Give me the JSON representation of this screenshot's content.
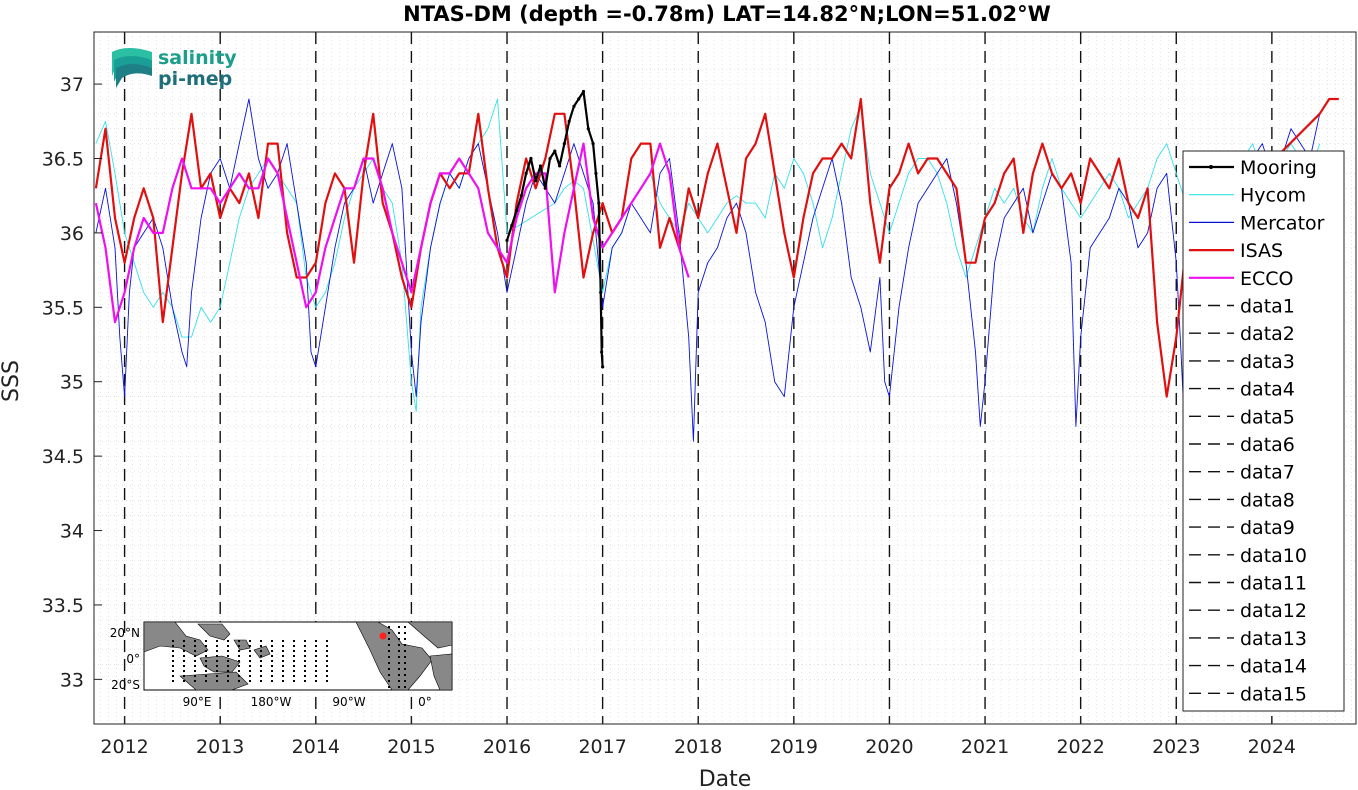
{
  "chart_data": {
    "type": "line",
    "title": "NTAS-DM (depth =-0.78m) LAT=14.82°N;LON=51.02°W",
    "xlabel": "Date",
    "ylabel": "SSS",
    "xlim": [
      2011.68,
      2024.88
    ],
    "ylim": [
      32.7,
      37.35
    ],
    "x_ticks": [
      "2012",
      "2013",
      "2014",
      "2015",
      "2016",
      "2017",
      "2018",
      "2019",
      "2020",
      "2021",
      "2022",
      "2023",
      "2024"
    ],
    "y_ticks": [
      "33",
      "33.5",
      "34",
      "34.5",
      "35",
      "35.5",
      "36",
      "36.5",
      "37"
    ],
    "grid": true,
    "legend_position": "right",
    "vertical_markers": [
      2012.0,
      2013.0,
      2014.0,
      2015.0,
      2016.0,
      2017.0,
      2018.0,
      2019.0,
      2020.0,
      2021.0,
      2022.0,
      2023.0,
      2024.0
    ],
    "series": [
      {
        "name": "Mooring",
        "color": "#000000",
        "style": "solid-dots",
        "x": [
          2016.0,
          2016.05,
          2016.1,
          2016.15,
          2016.2,
          2016.25,
          2016.3,
          2016.35,
          2016.4,
          2016.45,
          2016.5,
          2016.55,
          2016.6,
          2016.65,
          2016.7,
          2016.75,
          2016.8,
          2016.85,
          2016.9,
          2016.93,
          2016.96,
          2016.98,
          2016.99,
          2017.0
        ],
        "values": [
          35.95,
          36.05,
          36.15,
          36.25,
          36.4,
          36.5,
          36.35,
          36.45,
          36.3,
          36.5,
          36.55,
          36.45,
          36.6,
          36.75,
          36.85,
          36.9,
          36.95,
          36.7,
          36.6,
          36.4,
          36.2,
          35.6,
          35.2,
          35.1
        ]
      },
      {
        "name": "Hycom",
        "color": "#33e0e8",
        "style": "thin",
        "x": [
          2011.7,
          2011.8,
          2011.9,
          2012.0,
          2012.1,
          2012.2,
          2012.3,
          2012.4,
          2012.5,
          2012.55,
          2012.6,
          2012.7,
          2012.8,
          2012.9,
          2013.0,
          2013.1,
          2013.2,
          2013.3,
          2013.4,
          2013.5,
          2013.6,
          2013.7,
          2013.8,
          2013.9,
          2014.0,
          2014.1,
          2014.2,
          2014.3,
          2014.4,
          2014.5,
          2014.6,
          2014.7,
          2014.8,
          2014.9,
          2015.0,
          2015.05,
          2015.1,
          2015.2,
          2015.3,
          2015.4,
          2015.5,
          2015.6,
          2015.7,
          2015.8,
          2015.9,
          2016.0,
          2016.5,
          2016.6,
          2016.7,
          2016.8,
          2017.0,
          2017.1,
          2017.2,
          2017.3,
          2017.4,
          2017.5,
          2017.6,
          2017.7,
          2017.8,
          2017.9,
          2018.0,
          2018.1,
          2018.2,
          2018.3,
          2018.4,
          2018.5,
          2018.6,
          2018.7,
          2018.8,
          2018.9,
          2019.0,
          2019.1,
          2019.2,
          2019.3,
          2019.4,
          2019.5,
          2019.6,
          2019.7,
          2019.8,
          2019.9,
          2020.0,
          2020.1,
          2020.2,
          2020.3,
          2020.4,
          2020.5,
          2020.6,
          2020.7,
          2020.8,
          2020.9,
          2021.0,
          2021.1,
          2021.2,
          2021.3,
          2021.4,
          2021.5,
          2021.6,
          2021.7,
          2021.8,
          2021.9,
          2022.0,
          2022.1,
          2022.2,
          2022.3,
          2022.4,
          2022.5,
          2022.6,
          2022.7,
          2022.8,
          2022.9,
          2023.0,
          2023.1,
          2023.2,
          2023.3,
          2023.4,
          2023.5,
          2023.6,
          2023.7,
          2023.8,
          2023.9,
          2024.0,
          2024.1,
          2024.2,
          2024.3,
          2024.4,
          2024.5
        ],
        "values": [
          36.6,
          36.75,
          36.4,
          36.0,
          35.8,
          35.6,
          35.5,
          35.6,
          35.5,
          35.4,
          35.3,
          35.3,
          35.5,
          35.4,
          35.5,
          35.8,
          36.1,
          36.3,
          36.4,
          36.5,
          36.4,
          36.3,
          36.2,
          35.7,
          35.5,
          35.6,
          35.8,
          36.1,
          36.3,
          36.4,
          36.5,
          36.3,
          36.2,
          35.8,
          35.0,
          34.8,
          35.5,
          35.9,
          36.2,
          36.4,
          36.3,
          36.5,
          36.6,
          36.7,
          36.9,
          36.0,
          36.2,
          36.3,
          36.35,
          36.3,
          35.6,
          35.9,
          36.0,
          36.2,
          36.3,
          36.4,
          36.2,
          36.1,
          36.0,
          36.2,
          36.1,
          36.0,
          36.1,
          36.2,
          36.25,
          36.2,
          36.2,
          36.1,
          36.4,
          36.3,
          36.5,
          36.4,
          36.2,
          35.9,
          36.1,
          36.4,
          36.7,
          36.85,
          36.4,
          36.2,
          36.0,
          36.2,
          36.4,
          36.5,
          36.5,
          36.4,
          36.2,
          35.9,
          35.7,
          35.9,
          36.1,
          36.3,
          36.2,
          36.3,
          36.1,
          36.0,
          36.3,
          36.5,
          36.3,
          36.2,
          36.1,
          36.2,
          36.3,
          36.4,
          36.3,
          36.1,
          36.2,
          36.3,
          36.5,
          36.6,
          36.4,
          36.2,
          36.4,
          36.5,
          36.3,
          36.2,
          36.4,
          36.5,
          36.6,
          36.4,
          36.3,
          36.5,
          36.6,
          36.5,
          36.4,
          36.6
        ]
      },
      {
        "name": "Mercator",
        "color": "#0a12d8",
        "style": "thin",
        "x": [
          2011.7,
          2011.8,
          2011.9,
          2011.95,
          2012.0,
          2012.05,
          2012.1,
          2012.2,
          2012.3,
          2012.4,
          2012.5,
          2012.6,
          2012.65,
          2012.7,
          2012.8,
          2012.9,
          2013.0,
          2013.1,
          2013.2,
          2013.3,
          2013.4,
          2013.5,
          2013.6,
          2013.7,
          2013.8,
          2013.9,
          2013.95,
          2014.0,
          2014.1,
          2014.2,
          2014.3,
          2014.4,
          2014.5,
          2014.6,
          2014.7,
          2014.8,
          2014.9,
          2015.0,
          2015.05,
          2015.1,
          2015.2,
          2015.3,
          2015.4,
          2015.5,
          2015.6,
          2015.7,
          2015.8,
          2015.9,
          2016.0,
          2016.1,
          2016.2,
          2016.3,
          2016.4,
          2016.5,
          2016.6,
          2016.7,
          2016.8,
          2016.9,
          2017.0,
          2017.1,
          2017.2,
          2017.3,
          2017.4,
          2017.5,
          2017.6,
          2017.7,
          2017.8,
          2017.9,
          2017.95,
          2018.0,
          2018.1,
          2018.2,
          2018.3,
          2018.4,
          2018.5,
          2018.6,
          2018.7,
          2018.8,
          2018.9,
          2019.0,
          2019.1,
          2019.2,
          2019.3,
          2019.4,
          2019.5,
          2019.6,
          2019.7,
          2019.8,
          2019.9,
          2019.95,
          2020.0,
          2020.1,
          2020.2,
          2020.3,
          2020.4,
          2020.5,
          2020.6,
          2020.7,
          2020.8,
          2020.9,
          2020.95,
          2021.0,
          2021.1,
          2021.2,
          2021.3,
          2021.4,
          2021.5,
          2021.6,
          2021.7,
          2021.8,
          2021.9,
          2021.95,
          2022.0,
          2022.1,
          2022.2,
          2022.3,
          2022.4,
          2022.5,
          2022.6,
          2022.7,
          2022.8,
          2022.9,
          2023.0,
          2023.05,
          2023.1,
          2023.2,
          2023.3,
          2023.4,
          2023.5,
          2023.6,
          2023.7,
          2023.8,
          2023.9,
          2024.0,
          2024.1,
          2024.2,
          2024.3,
          2024.4,
          2024.5
        ],
        "values": [
          36.0,
          36.3,
          35.9,
          35.3,
          34.9,
          35.6,
          35.9,
          36.0,
          36.1,
          35.9,
          35.5,
          35.2,
          35.1,
          35.6,
          36.1,
          36.4,
          36.5,
          36.3,
          36.6,
          36.9,
          36.5,
          36.3,
          36.4,
          36.6,
          36.2,
          35.8,
          35.2,
          35.1,
          35.5,
          35.9,
          36.2,
          36.3,
          36.5,
          36.2,
          36.4,
          36.6,
          36.3,
          35.2,
          34.9,
          35.4,
          35.9,
          36.2,
          36.4,
          36.3,
          36.5,
          36.6,
          36.3,
          36.0,
          35.6,
          35.9,
          36.2,
          36.4,
          36.3,
          36.2,
          36.4,
          36.6,
          36.4,
          36.2,
          35.5,
          35.9,
          36.0,
          36.2,
          36.1,
          36.0,
          36.4,
          36.5,
          36.0,
          35.3,
          34.6,
          35.6,
          35.8,
          35.9,
          36.1,
          36.2,
          36.0,
          35.6,
          35.4,
          35.0,
          34.9,
          35.5,
          35.8,
          36.1,
          36.3,
          36.5,
          36.2,
          35.7,
          35.5,
          35.2,
          35.7,
          35.0,
          34.9,
          35.5,
          35.9,
          36.2,
          36.3,
          36.4,
          36.5,
          36.2,
          35.8,
          35.2,
          34.7,
          35.0,
          35.8,
          36.1,
          36.2,
          36.3,
          36.0,
          36.2,
          36.4,
          36.3,
          35.8,
          34.7,
          35.3,
          35.9,
          36.0,
          36.1,
          36.3,
          36.2,
          35.9,
          36.0,
          36.3,
          36.4,
          35.8,
          35.2,
          34.5,
          35.5,
          35.9,
          36.1,
          36.2,
          36.4,
          36.3,
          36.5,
          36.6,
          36.4,
          36.5,
          36.7,
          36.6,
          36.5,
          36.8
        ]
      },
      {
        "name": "ISAS",
        "color": "#e01010",
        "style": "thick",
        "x": [
          2011.7,
          2011.8,
          2011.9,
          2012.0,
          2012.1,
          2012.2,
          2012.3,
          2012.4,
          2012.5,
          2012.6,
          2012.7,
          2012.8,
          2012.9,
          2013.0,
          2013.1,
          2013.2,
          2013.3,
          2013.4,
          2013.5,
          2013.6,
          2013.7,
          2013.8,
          2013.9,
          2014.0,
          2014.1,
          2014.2,
          2014.3,
          2014.4,
          2014.5,
          2014.6,
          2014.7,
          2014.8,
          2014.9,
          2015.0,
          2015.1,
          2015.2,
          2015.3,
          2015.4,
          2015.5,
          2015.6,
          2015.7,
          2015.8,
          2015.9,
          2016.0,
          2016.1,
          2016.2,
          2016.3,
          2016.4,
          2016.5,
          2016.6,
          2016.7,
          2016.8,
          2016.9,
          2017.0,
          2017.1,
          2017.2,
          2017.3,
          2017.4,
          2017.5,
          2017.6,
          2017.7,
          2017.8,
          2017.9,
          2018.0,
          2018.1,
          2018.2,
          2018.3,
          2018.4,
          2018.5,
          2018.6,
          2018.7,
          2018.8,
          2018.9,
          2019.0,
          2019.1,
          2019.2,
          2019.3,
          2019.4,
          2019.5,
          2019.6,
          2019.7,
          2019.8,
          2019.9,
          2020.0,
          2020.1,
          2020.2,
          2020.3,
          2020.4,
          2020.5,
          2020.6,
          2020.7,
          2020.8,
          2020.9,
          2021.0,
          2021.1,
          2021.2,
          2021.3,
          2021.4,
          2021.5,
          2021.6,
          2021.7,
          2021.8,
          2021.9,
          2022.0,
          2022.1,
          2022.2,
          2022.3,
          2022.4,
          2022.5,
          2022.6,
          2022.7,
          2022.8,
          2022.9,
          2023.0,
          2023.1,
          2024.5,
          2024.6,
          2024.7
        ],
        "values": [
          36.3,
          36.7,
          36.1,
          35.8,
          36.1,
          36.3,
          36.1,
          35.4,
          35.9,
          36.4,
          36.8,
          36.3,
          36.4,
          36.1,
          36.3,
          36.2,
          36.4,
          36.1,
          36.6,
          36.6,
          36.0,
          35.7,
          35.7,
          35.8,
          36.2,
          36.4,
          36.3,
          35.8,
          36.4,
          36.8,
          36.2,
          36.0,
          35.7,
          35.5,
          35.9,
          36.2,
          36.4,
          36.3,
          36.4,
          36.4,
          36.8,
          36.3,
          35.9,
          35.7,
          36.2,
          36.5,
          36.3,
          36.5,
          36.8,
          36.8,
          36.3,
          35.7,
          36.0,
          36.2,
          36.0,
          36.1,
          36.5,
          36.6,
          36.6,
          35.9,
          36.1,
          35.9,
          36.3,
          36.1,
          36.4,
          36.6,
          36.3,
          36.0,
          36.5,
          36.6,
          36.8,
          36.4,
          36.0,
          35.7,
          36.1,
          36.4,
          36.5,
          36.5,
          36.6,
          36.5,
          36.9,
          36.2,
          35.8,
          36.3,
          36.4,
          36.6,
          36.4,
          36.5,
          36.5,
          36.4,
          36.3,
          35.8,
          35.8,
          36.1,
          36.2,
          36.4,
          36.5,
          36.0,
          36.4,
          36.6,
          36.4,
          36.3,
          36.4,
          36.2,
          36.5,
          36.4,
          36.3,
          36.5,
          36.2,
          36.1,
          36.3,
          35.4,
          34.9,
          35.3,
          35.9,
          36.8,
          36.9,
          36.9
        ]
      },
      {
        "name": "ECCO",
        "color": "#ee10ee",
        "style": "thick",
        "x": [
          2011.7,
          2011.8,
          2011.9,
          2012.0,
          2012.1,
          2012.2,
          2012.3,
          2012.4,
          2012.5,
          2012.6,
          2012.7,
          2012.8,
          2012.9,
          2013.0,
          2013.1,
          2013.2,
          2013.3,
          2013.4,
          2013.5,
          2013.6,
          2013.7,
          2013.8,
          2013.9,
          2014.0,
          2014.1,
          2014.2,
          2014.3,
          2014.4,
          2014.5,
          2014.6,
          2014.7,
          2014.8,
          2014.9,
          2015.0,
          2015.1,
          2015.2,
          2015.3,
          2015.4,
          2015.5,
          2015.6,
          2015.7,
          2015.8,
          2015.9,
          2016.0,
          2016.1,
          2016.2,
          2016.3,
          2016.4,
          2016.5,
          2016.6,
          2016.7,
          2016.8,
          2016.9,
          2017.0,
          2017.1,
          2017.2,
          2017.3,
          2017.4,
          2017.5,
          2017.6,
          2017.7,
          2017.8,
          2017.9
        ],
        "values": [
          36.2,
          35.9,
          35.4,
          35.6,
          35.9,
          36.1,
          36.0,
          36.0,
          36.3,
          36.5,
          36.3,
          36.3,
          36.3,
          36.2,
          36.3,
          36.4,
          36.3,
          36.3,
          36.5,
          36.4,
          36.1,
          35.8,
          35.5,
          35.6,
          35.9,
          36.1,
          36.3,
          36.3,
          36.5,
          36.5,
          36.3,
          36.0,
          35.8,
          35.6,
          35.9,
          36.2,
          36.4,
          36.4,
          36.5,
          36.4,
          36.3,
          36.0,
          35.9,
          35.8,
          36.1,
          36.3,
          36.4,
          36.4,
          35.6,
          36.0,
          36.3,
          36.6,
          36.1,
          35.9,
          36.0,
          36.1,
          36.2,
          36.3,
          36.4,
          36.6,
          36.4,
          35.9,
          35.7
        ]
      }
    ],
    "legend": [
      "Mooring",
      "Hycom",
      "Mercator",
      "ISAS",
      "ECCO",
      "data1",
      "data2",
      "data3",
      "data4",
      "data5",
      "data6",
      "data7",
      "data8",
      "data9",
      "data10",
      "data11",
      "data12",
      "data13",
      "data14",
      "data15"
    ]
  },
  "logo": {
    "line1": "salinity",
    "line2": "pi-mep"
  },
  "inset_map": {
    "lat_labels": [
      "20°N",
      "0°",
      "20°S"
    ],
    "lon_labels": [
      "90°E",
      "180°W",
      "90°W",
      "0°"
    ]
  }
}
